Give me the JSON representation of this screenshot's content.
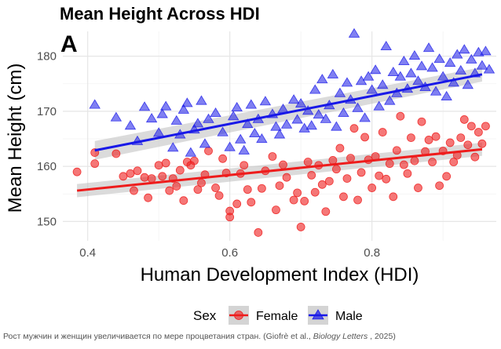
{
  "caption": {
    "prefix": "Рост мужчин и женщин увеличивается по мере процветания стран. (Giofrè et al., ",
    "journal": "Biology Letters",
    "suffix": " , 2025)"
  },
  "chart_data": {
    "type": "scatter",
    "title": "Mean Height Across HDI",
    "panel_label": "A",
    "xlabel": "Human Development Index (HDI)",
    "ylabel": "Mean Height (cm)",
    "xlim": [
      0.365,
      0.975
    ],
    "ylim": [
      146.5,
      184.5
    ],
    "x_ticks": [
      0.4,
      0.6,
      0.8
    ],
    "y_ticks": [
      150,
      160,
      170,
      180
    ],
    "minor_x": [
      0.5,
      0.7,
      0.9
    ],
    "minor_y": [
      155,
      165,
      175
    ],
    "grid": true,
    "legend": {
      "title": "Sex",
      "position": "bottom"
    },
    "series": [
      {
        "name": "Female",
        "color": "#ee1c1c",
        "marker": "circle",
        "trend": {
          "x": [
            0.385,
            0.955
          ],
          "y": [
            155.6,
            163.1
          ]
        },
        "band": {
          "lower_start": 154.4,
          "upper_start": 156.8,
          "lower_end": 161.9,
          "upper_end": 164.3
        },
        "points": [
          [
            0.385,
            159
          ],
          [
            0.41,
            162.5
          ],
          [
            0.41,
            160.5
          ],
          [
            0.44,
            162.3
          ],
          [
            0.45,
            158.2
          ],
          [
            0.46,
            158.7
          ],
          [
            0.465,
            155.6
          ],
          [
            0.47,
            159.2
          ],
          [
            0.48,
            158
          ],
          [
            0.485,
            154.3
          ],
          [
            0.49,
            157.8
          ],
          [
            0.5,
            160.2
          ],
          [
            0.505,
            158.2
          ],
          [
            0.51,
            160.6
          ],
          [
            0.515,
            155.6
          ],
          [
            0.52,
            157.8
          ],
          [
            0.525,
            156.4
          ],
          [
            0.53,
            159.3
          ],
          [
            0.535,
            153.8
          ],
          [
            0.54,
            160.8
          ],
          [
            0.545,
            160.2
          ],
          [
            0.55,
            161
          ],
          [
            0.555,
            155.8
          ],
          [
            0.56,
            157
          ],
          [
            0.565,
            158.5
          ],
          [
            0.57,
            162.8
          ],
          [
            0.58,
            156.1
          ],
          [
            0.585,
            154.7
          ],
          [
            0.59,
            161.4
          ],
          [
            0.595,
            158.8
          ],
          [
            0.6,
            150.8
          ],
          [
            0.6,
            151.9
          ],
          [
            0.61,
            153.2
          ],
          [
            0.615,
            158.7
          ],
          [
            0.62,
            160.2
          ],
          [
            0.625,
            155.8
          ],
          [
            0.63,
            153.5
          ],
          [
            0.64,
            148
          ],
          [
            0.645,
            156
          ],
          [
            0.65,
            159.2
          ],
          [
            0.66,
            161.8
          ],
          [
            0.665,
            152.1
          ],
          [
            0.67,
            156.5
          ],
          [
            0.675,
            160.3
          ],
          [
            0.68,
            158
          ],
          [
            0.69,
            153.9
          ],
          [
            0.695,
            155.2
          ],
          [
            0.7,
            149
          ],
          [
            0.705,
            153.7
          ],
          [
            0.71,
            160.8
          ],
          [
            0.715,
            158.4
          ],
          [
            0.72,
            155.3
          ],
          [
            0.725,
            160.2
          ],
          [
            0.73,
            156.7
          ],
          [
            0.735,
            151.8
          ],
          [
            0.74,
            157.3
          ],
          [
            0.745,
            161.1
          ],
          [
            0.75,
            159.5
          ],
          [
            0.755,
            163.3
          ],
          [
            0.76,
            154.5
          ],
          [
            0.765,
            157.8
          ],
          [
            0.77,
            161.5
          ],
          [
            0.775,
            166.9
          ],
          [
            0.78,
            153.9
          ],
          [
            0.785,
            158.9
          ],
          [
            0.79,
            165.3
          ],
          [
            0.795,
            161.2
          ],
          [
            0.8,
            156.1
          ],
          [
            0.805,
            161.8
          ],
          [
            0.81,
            158.3
          ],
          [
            0.815,
            166.2
          ],
          [
            0.82,
            157.7
          ],
          [
            0.825,
            160.5
          ],
          [
            0.83,
            154.5
          ],
          [
            0.835,
            162.9
          ],
          [
            0.84,
            169.1
          ],
          [
            0.845,
            160.3
          ],
          [
            0.85,
            158.7
          ],
          [
            0.855,
            165.2
          ],
          [
            0.86,
            161
          ],
          [
            0.865,
            156.1
          ],
          [
            0.87,
            168.1
          ],
          [
            0.875,
            162.7
          ],
          [
            0.88,
            164.8
          ],
          [
            0.885,
            160.8
          ],
          [
            0.89,
            165.4
          ],
          [
            0.895,
            156.5
          ],
          [
            0.9,
            162.8
          ],
          [
            0.905,
            158.2
          ],
          [
            0.91,
            164.3
          ],
          [
            0.915,
            160.8
          ],
          [
            0.92,
            162
          ],
          [
            0.925,
            165.2
          ],
          [
            0.93,
            168.5
          ],
          [
            0.935,
            163.9
          ],
          [
            0.94,
            167.3
          ],
          [
            0.945,
            161.7
          ],
          [
            0.95,
            166.2
          ],
          [
            0.955,
            164.1
          ],
          [
            0.96,
            167.3
          ]
        ]
      },
      {
        "name": "Male",
        "color": "#1818e8",
        "marker": "triangle",
        "trend": {
          "x": [
            0.41,
            0.955
          ],
          "y": [
            162.9,
            176.7
          ]
        },
        "band": {
          "lower_start": 161.2,
          "upper_start": 164.6,
          "lower_end": 175.4,
          "upper_end": 178
        },
        "points": [
          [
            0.41,
            171.2
          ],
          [
            0.44,
            168.9
          ],
          [
            0.46,
            167.4
          ],
          [
            0.47,
            164.6
          ],
          [
            0.48,
            170.8
          ],
          [
            0.49,
            168.7
          ],
          [
            0.5,
            166.1
          ],
          [
            0.505,
            169.5
          ],
          [
            0.51,
            170.9
          ],
          [
            0.52,
            163.4
          ],
          [
            0.525,
            168.3
          ],
          [
            0.53,
            165.8
          ],
          [
            0.535,
            170.3
          ],
          [
            0.54,
            171.5
          ],
          [
            0.545,
            162.5
          ],
          [
            0.55,
            166.7
          ],
          [
            0.555,
            167.8
          ],
          [
            0.56,
            171.9
          ],
          [
            0.565,
            164.1
          ],
          [
            0.57,
            168.6
          ],
          [
            0.58,
            169.7
          ],
          [
            0.59,
            166.2
          ],
          [
            0.6,
            163.5
          ],
          [
            0.605,
            169.1
          ],
          [
            0.61,
            170.7
          ],
          [
            0.615,
            164.9
          ],
          [
            0.62,
            162.9
          ],
          [
            0.625,
            167.7
          ],
          [
            0.63,
            171.2
          ],
          [
            0.635,
            166
          ],
          [
            0.64,
            168.6
          ],
          [
            0.645,
            165
          ],
          [
            0.65,
            171.8
          ],
          [
            0.66,
            169.5
          ],
          [
            0.665,
            167.2
          ],
          [
            0.67,
            165.8
          ],
          [
            0.675,
            170.4
          ],
          [
            0.68,
            167.6
          ],
          [
            0.69,
            172.1
          ],
          [
            0.695,
            168.5
          ],
          [
            0.7,
            171.4
          ],
          [
            0.705,
            166.9
          ],
          [
            0.71,
            170.1
          ],
          [
            0.715,
            167.4
          ],
          [
            0.72,
            173.9
          ],
          [
            0.725,
            169.4
          ],
          [
            0.73,
            175.8
          ],
          [
            0.735,
            168.6
          ],
          [
            0.74,
            171.1
          ],
          [
            0.745,
            176.7
          ],
          [
            0.75,
            167.2
          ],
          [
            0.755,
            173.3
          ],
          [
            0.76,
            169.7
          ],
          [
            0.765,
            175.2
          ],
          [
            0.77,
            172.1
          ],
          [
            0.775,
            184.1
          ],
          [
            0.78,
            170.6
          ],
          [
            0.785,
            175.5
          ],
          [
            0.79,
            168.8
          ],
          [
            0.795,
            176.3
          ],
          [
            0.8,
            173.9
          ],
          [
            0.805,
            177.5
          ],
          [
            0.81,
            170.9
          ],
          [
            0.815,
            174.8
          ],
          [
            0.82,
            181.8
          ],
          [
            0.825,
            171.9
          ],
          [
            0.83,
            177.1
          ],
          [
            0.835,
            173.3
          ],
          [
            0.84,
            176.3
          ],
          [
            0.845,
            179.1
          ],
          [
            0.85,
            174.1
          ],
          [
            0.855,
            176.9
          ],
          [
            0.86,
            180.1
          ],
          [
            0.865,
            175.5
          ],
          [
            0.87,
            178.2
          ],
          [
            0.875,
            174.4
          ],
          [
            0.88,
            181.5
          ],
          [
            0.885,
            177.9
          ],
          [
            0.89,
            173.6
          ],
          [
            0.895,
            179.5
          ],
          [
            0.9,
            176.3
          ],
          [
            0.905,
            172.7
          ],
          [
            0.91,
            178.8
          ],
          [
            0.915,
            175.2
          ],
          [
            0.92,
            180.3
          ],
          [
            0.925,
            177.4
          ],
          [
            0.93,
            181.2
          ],
          [
            0.935,
            174.8
          ],
          [
            0.94,
            179.4
          ],
          [
            0.945,
            176.9
          ],
          [
            0.95,
            180.7
          ],
          [
            0.955,
            178.3
          ],
          [
            0.96,
            180.9
          ],
          [
            0.965,
            177.6
          ]
        ]
      }
    ]
  }
}
